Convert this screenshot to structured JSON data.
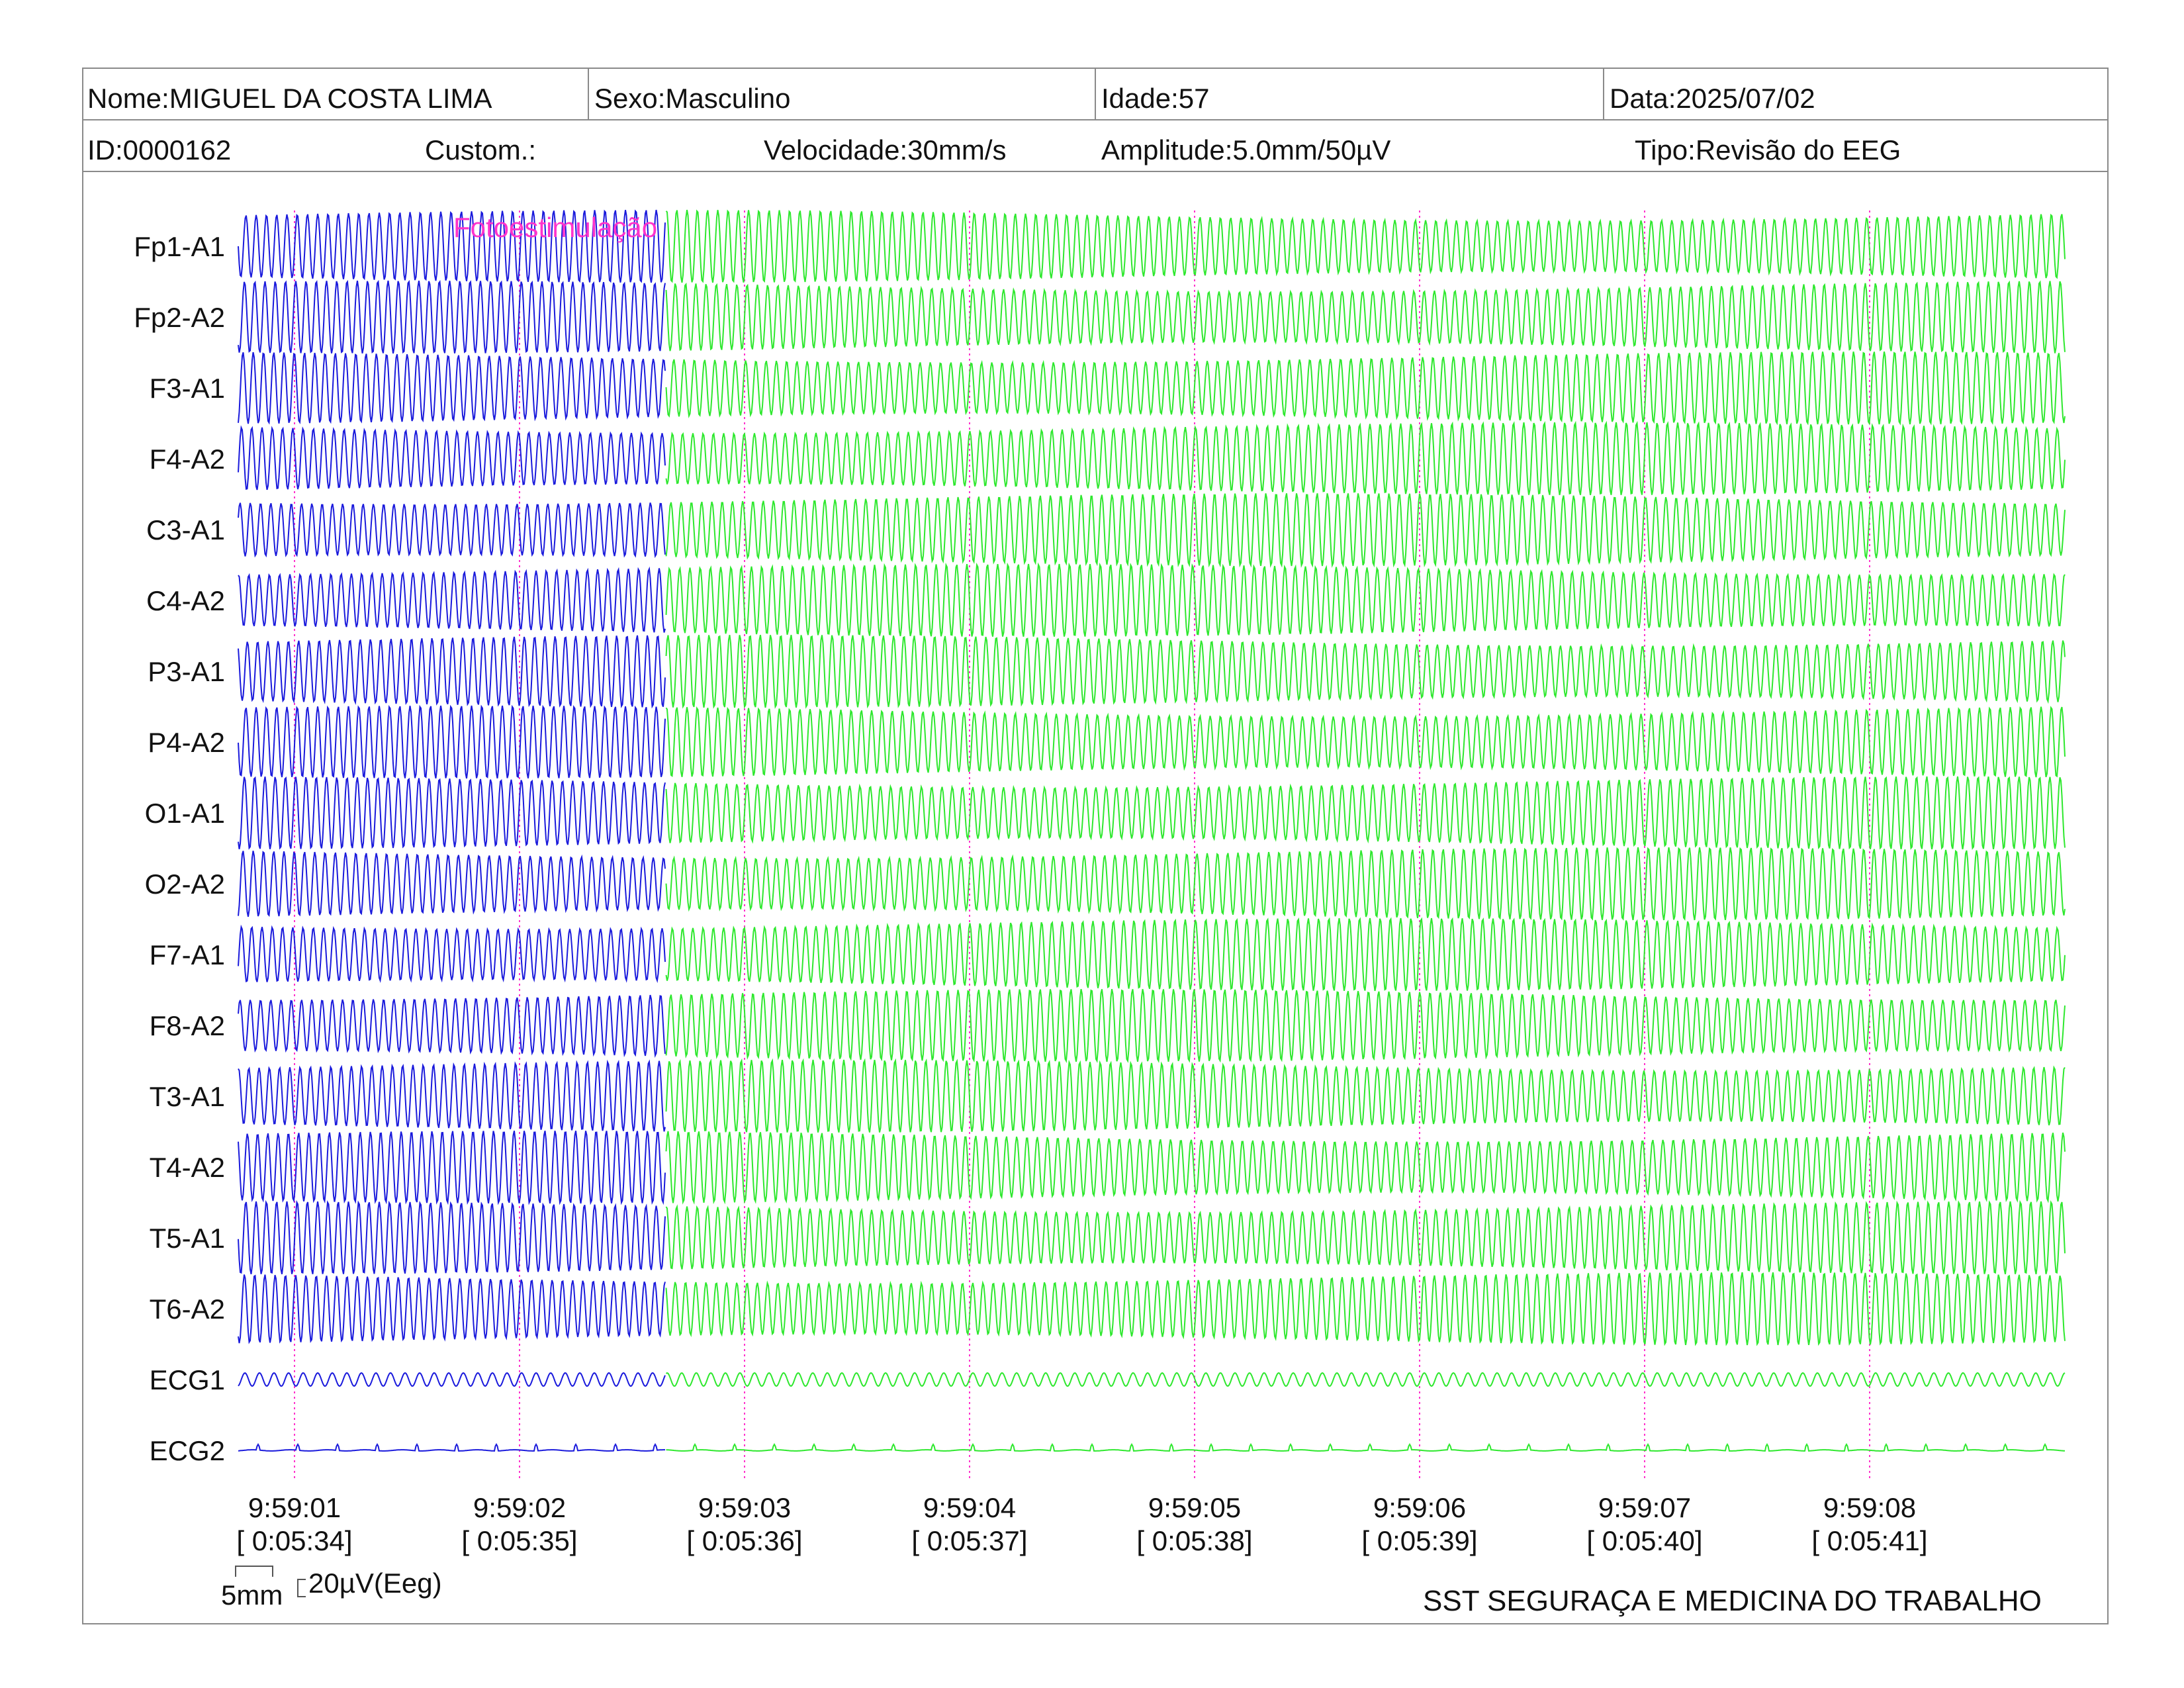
{
  "header": {
    "nome": "Nome:MIGUEL DA COSTA LIMA",
    "sexo": "Sexo:Masculino",
    "idade": "Idade:57",
    "data": "Data:2025/07/02",
    "id": "ID:0000162",
    "custom": "Custom.:",
    "velocidade": "Velocidade:30mm/s",
    "amplitude": "Amplitude:5.0mm/50µV",
    "tipo": "Tipo:Revisão do EEG"
  },
  "event": {
    "label": "Fotoestimulação",
    "color": "#ff33cc"
  },
  "colors": {
    "pre": "#1a1adc",
    "post": "#2ee82e",
    "marker": "#ff33cc"
  },
  "chart_data": {
    "type": "line",
    "channels": [
      "Fp1-A1",
      "Fp2-A2",
      "F3-A1",
      "F4-A2",
      "C3-A1",
      "C4-A2",
      "P3-A1",
      "P4-A2",
      "O1-A1",
      "O2-A2",
      "F7-A1",
      "F8-A2",
      "T3-A1",
      "T4-A2",
      "T5-A1",
      "T6-A2",
      "ECG1",
      "ECG2"
    ],
    "time_ticks": [
      {
        "clock": "9:59:01",
        "elapsed": "[ 0:05:34]"
      },
      {
        "clock": "9:59:02",
        "elapsed": "[ 0:05:35]"
      },
      {
        "clock": "9:59:03",
        "elapsed": "[ 0:05:36]"
      },
      {
        "clock": "9:59:04",
        "elapsed": "[ 0:05:37]"
      },
      {
        "clock": "9:59:05",
        "elapsed": "[ 0:05:38]"
      },
      {
        "clock": "9:59:06",
        "elapsed": "[ 0:05:39]"
      },
      {
        "clock": "9:59:07",
        "elapsed": "[ 0:05:40]"
      },
      {
        "clock": "9:59:08",
        "elapsed": "[ 0:05:41]"
      }
    ],
    "photic_stimulation_onset": "9:59:02.65",
    "grid": false
  },
  "scale": {
    "time": "5mm",
    "amplitude": "20µV(Eeg)"
  },
  "footer": {
    "company": "SST SEGURAÇA E MEDICINA DO TRABALHO"
  }
}
